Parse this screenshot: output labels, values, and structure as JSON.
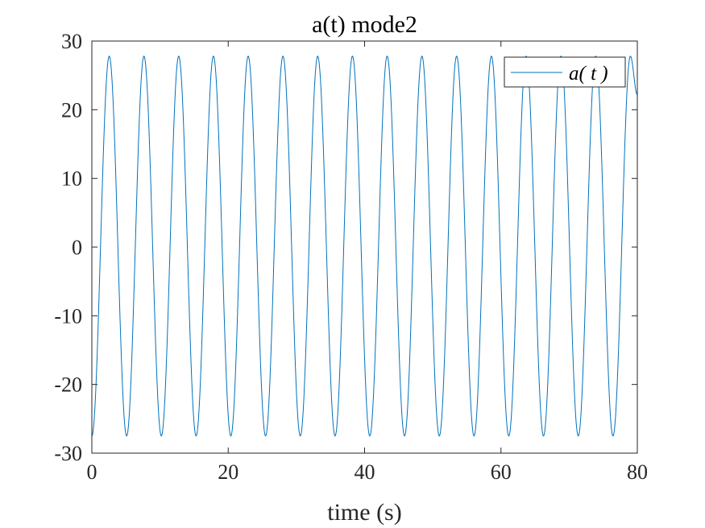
{
  "colors": {
    "series": "#0072BD",
    "axis": "#262626",
    "background": "#ffffff"
  },
  "chart_data": {
    "type": "line",
    "title": "a(t) mode2",
    "xlabel": "time (s)",
    "ylabel": "",
    "xlim": [
      0,
      80
    ],
    "ylim": [
      -30,
      30
    ],
    "xticks": [
      0,
      20,
      40,
      60,
      80
    ],
    "yticks": [
      -30,
      -20,
      -10,
      0,
      10,
      20,
      30
    ],
    "xtick_labels": [
      "0",
      "20",
      "40",
      "60",
      "80"
    ],
    "ytick_labels": [
      "-30",
      "-20",
      "-10",
      "0",
      "10",
      "20",
      "30"
    ],
    "grid": false,
    "box": true,
    "legend_position": "top-right",
    "series": [
      {
        "name": "a( t )",
        "color": "#0072BD",
        "x": [
          0,
          1.27,
          2.55,
          3.82,
          5.1,
          6.37,
          7.64,
          8.92,
          10.19,
          11.47,
          12.74,
          14.01,
          15.29,
          16.56,
          17.83,
          19.11,
          20.38,
          21.66,
          22.93,
          24.2,
          25.48,
          26.75,
          28.03,
          29.3,
          30.57,
          31.85,
          33.12,
          34.4,
          35.67,
          36.94,
          38.22,
          39.49,
          40.76,
          42.04,
          43.31,
          44.59,
          45.86,
          47.13,
          48.41,
          49.68,
          50.96,
          52.23,
          53.5,
          54.78,
          56.05,
          57.32,
          58.6,
          59.87,
          61.15,
          62.42,
          63.69,
          64.97,
          66.24,
          67.52,
          68.79,
          70.06,
          71.34,
          72.61,
          73.89,
          75.16,
          76.43,
          77.71,
          78.98,
          80
        ],
        "y": [
          -27.5,
          0,
          27.8,
          0,
          -27.5,
          0,
          27.8,
          0,
          -27.5,
          0,
          27.8,
          0,
          -27.5,
          0,
          27.8,
          0,
          -27.5,
          0,
          27.8,
          0,
          -27.5,
          0,
          27.8,
          0,
          -27.5,
          0,
          27.8,
          0,
          -27.5,
          0,
          27.8,
          0,
          -27.5,
          0,
          27.8,
          0,
          -27.5,
          0,
          27.8,
          0,
          -27.5,
          0,
          27.8,
          0,
          -27.5,
          0,
          27.8,
          0,
          -27.5,
          0,
          27.8,
          0,
          -27.5,
          0,
          27.8,
          0,
          -27.5,
          0,
          27.8,
          0,
          -27.5,
          0,
          27.8,
          22.2
        ]
      }
    ]
  }
}
